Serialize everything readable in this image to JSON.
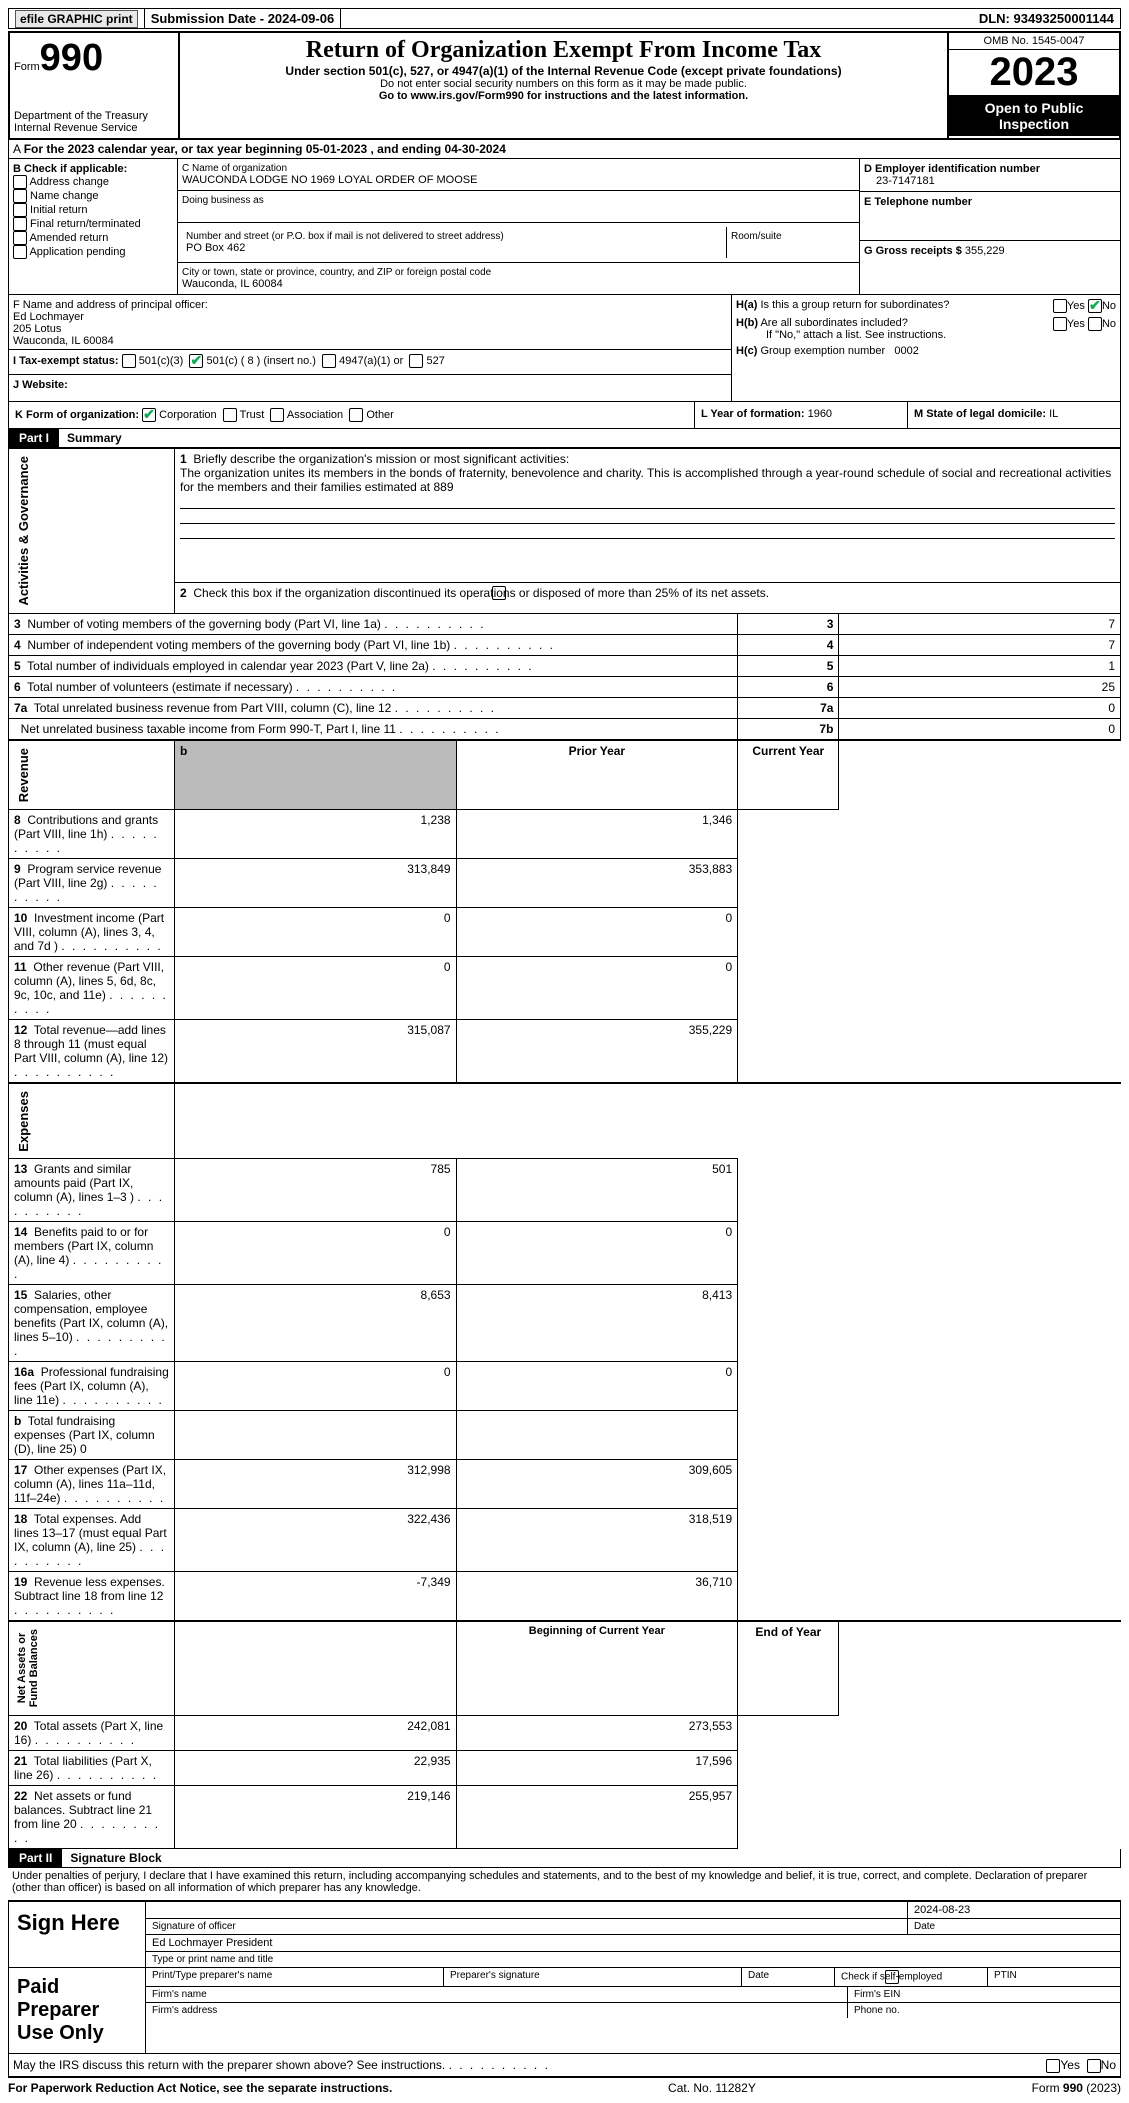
{
  "top": {
    "efile": "efile GRAPHIC print",
    "submission": "Submission Date - 2024-09-06",
    "dln": "DLN: 93493250001144"
  },
  "header": {
    "form_word": "Form",
    "form_num": "990",
    "dept": "Department of the Treasury\nInternal Revenue Service",
    "title": "Return of Organization Exempt From Income Tax",
    "sub": "Under section 501(c), 527, or 4947(a)(1) of the Internal Revenue Code (except private foundations)",
    "ssn": "Do not enter social security numbers on this form as it may be made public.",
    "goto": "Go to www.irs.gov/Form990 for instructions and the latest information.",
    "omb": "OMB No. 1545-0047",
    "year": "2023",
    "inspect": "Open to Public Inspection"
  },
  "A": "For the 2023 calendar year, or tax year beginning 05-01-2023   , and ending 04-30-2024",
  "B": {
    "label": "B Check if applicable:",
    "items": [
      "Address change",
      "Name change",
      "Initial return",
      "Final return/terminated",
      "Amended return",
      "Application pending"
    ]
  },
  "C": {
    "name_label": "C Name of organization",
    "name": "WAUCONDA LODGE NO 1969 LOYAL ORDER OF MOOSE",
    "dba_label": "Doing business as",
    "addr_label": "Number and street (or P.O. box if mail is not delivered to street address)",
    "addr": "PO Box 462",
    "room_label": "Room/suite",
    "city_label": "City or town, state or province, country, and ZIP or foreign postal code",
    "city": "Wauconda, IL  60084"
  },
  "D": {
    "label": "D Employer identification number",
    "val": "23-7147181"
  },
  "E": {
    "label": "E Telephone number"
  },
  "G": {
    "label": "G Gross receipts $",
    "val": "355,229"
  },
  "F": {
    "label": "F  Name and address of principal officer:",
    "name": "Ed Lochmayer",
    "addr1": "205 Lotus",
    "addr2": "Wauconda, IL  60084"
  },
  "I": {
    "label": "I    Tax-exempt status:",
    "c3": "501(c)(3)",
    "c8": "501(c) ( 8 ) (insert no.)",
    "a1": "4947(a)(1) or",
    "s527": "527"
  },
  "J": "J    Website:",
  "Ha": "Is this a group return for subordinates?",
  "Hb": "Are all subordinates included?",
  "Hb_note": "If \"No,\" attach a list. See instructions.",
  "Hc": "Group exemption number",
  "Hc_val": "0002",
  "K": "K Form of organization:",
  "K_opts": [
    "Corporation",
    "Trust",
    "Association",
    "Other"
  ],
  "L": {
    "label": "L Year of formation:",
    "val": "1960"
  },
  "M": {
    "label": "M State of legal domicile:",
    "val": "IL"
  },
  "part1": {
    "num": "Part I",
    "title": "Summary"
  },
  "mission_label": "Briefly describe the organization's mission or most significant activities:",
  "mission": "The organization unites its members in the bonds of fraternity, benevolence and charity. This is accomplished through a year-round schedule of social and recreational activities for the members and their families estimated at 889",
  "line2": "Check this box      if the organization discontinued its operations or disposed of more than 25% of its net assets.",
  "gov_lines": [
    {
      "n": "3",
      "t": "Number of voting members of the governing body (Part VI, line 1a)",
      "box": "3",
      "v": "7"
    },
    {
      "n": "4",
      "t": "Number of independent voting members of the governing body (Part VI, line 1b)",
      "box": "4",
      "v": "7"
    },
    {
      "n": "5",
      "t": "Total number of individuals employed in calendar year 2023 (Part V, line 2a)",
      "box": "5",
      "v": "1"
    },
    {
      "n": "6",
      "t": "Total number of volunteers (estimate if necessary)",
      "box": "6",
      "v": "25"
    },
    {
      "n": "7a",
      "t": "Total unrelated business revenue from Part VIII, column (C), line 12",
      "box": "7a",
      "v": "0"
    },
    {
      "n": "",
      "t": "Net unrelated business taxable income from Form 990-T, Part I, line 11",
      "box": "7b",
      "v": "0"
    }
  ],
  "col_hdr": {
    "py": "Prior Year",
    "cy": "Current Year"
  },
  "rev_lines": [
    {
      "n": "8",
      "t": "Contributions and grants (Part VIII, line 1h)",
      "py": "1,238",
      "cy": "1,346"
    },
    {
      "n": "9",
      "t": "Program service revenue (Part VIII, line 2g)",
      "py": "313,849",
      "cy": "353,883"
    },
    {
      "n": "10",
      "t": "Investment income (Part VIII, column (A), lines 3, 4, and 7d )",
      "py": "0",
      "cy": "0"
    },
    {
      "n": "11",
      "t": "Other revenue (Part VIII, column (A), lines 5, 6d, 8c, 9c, 10c, and 11e)",
      "py": "0",
      "cy": "0"
    },
    {
      "n": "12",
      "t": "Total revenue—add lines 8 through 11 (must equal Part VIII, column (A), line 12)",
      "py": "315,087",
      "cy": "355,229"
    }
  ],
  "exp_lines": [
    {
      "n": "13",
      "t": "Grants and similar amounts paid (Part IX, column (A), lines 1–3 )",
      "py": "785",
      "cy": "501"
    },
    {
      "n": "14",
      "t": "Benefits paid to or for members (Part IX, column (A), line 4)",
      "py": "0",
      "cy": "0"
    },
    {
      "n": "15",
      "t": "Salaries, other compensation, employee benefits (Part IX, column (A), lines 5–10)",
      "py": "8,653",
      "cy": "8,413"
    },
    {
      "n": "16a",
      "t": "Professional fundraising fees (Part IX, column (A), line 11e)",
      "py": "0",
      "cy": "0"
    },
    {
      "n": "b",
      "t": "Total fundraising expenses (Part IX, column (D), line 25) 0",
      "py": "",
      "cy": "",
      "shaded": true
    },
    {
      "n": "17",
      "t": "Other expenses (Part IX, column (A), lines 11a–11d, 11f–24e)",
      "py": "312,998",
      "cy": "309,605"
    },
    {
      "n": "18",
      "t": "Total expenses. Add lines 13–17 (must equal Part IX, column (A), line 25)",
      "py": "322,436",
      "cy": "318,519"
    },
    {
      "n": "19",
      "t": "Revenue less expenses. Subtract line 18 from line 12",
      "py": "-7,349",
      "cy": "36,710"
    }
  ],
  "na_hdr": {
    "py": "Beginning of Current Year",
    "cy": "End of Year"
  },
  "na_lines": [
    {
      "n": "20",
      "t": "Total assets (Part X, line 16)",
      "py": "242,081",
      "cy": "273,553"
    },
    {
      "n": "21",
      "t": "Total liabilities (Part X, line 26)",
      "py": "22,935",
      "cy": "17,596"
    },
    {
      "n": "22",
      "t": "Net assets or fund balances. Subtract line 21 from line 20",
      "py": "219,146",
      "cy": "255,957"
    }
  ],
  "part2": {
    "num": "Part II",
    "title": "Signature Block"
  },
  "perjury": "Under penalties of perjury, I declare that I have examined this return, including accompanying schedules and statements, and to the best of my knowledge and belief, it is true, correct, and complete. Declaration of preparer (other than officer) is based on all information of which preparer has any knowledge.",
  "sig": {
    "here": "Sign Here",
    "sig_label": "Signature of officer",
    "date_label": "Date",
    "date": "2024-08-23",
    "name": "Ed Lochmayer  President",
    "type_label": "Type or print name and title",
    "paid": "Paid Preparer Use Only",
    "prep_name": "Print/Type preparer's name",
    "prep_sig": "Preparer's signature",
    "self_emp": "Check        if self-employed",
    "ptin": "PTIN",
    "firm_name": "Firm's name",
    "firm_ein": "Firm's EIN",
    "firm_addr": "Firm's address",
    "phone": "Phone no."
  },
  "discuss": "May the IRS discuss this return with the preparer shown above? See instructions.",
  "footer": {
    "pra": "For Paperwork Reduction Act Notice, see the separate instructions.",
    "cat": "Cat. No. 11282Y",
    "form": "Form 990 (2023)"
  },
  "vlabels": {
    "gov": "Activities & Governance",
    "rev": "Revenue",
    "exp": "Expenses",
    "na": "Net Assets or\nFund Balances"
  }
}
